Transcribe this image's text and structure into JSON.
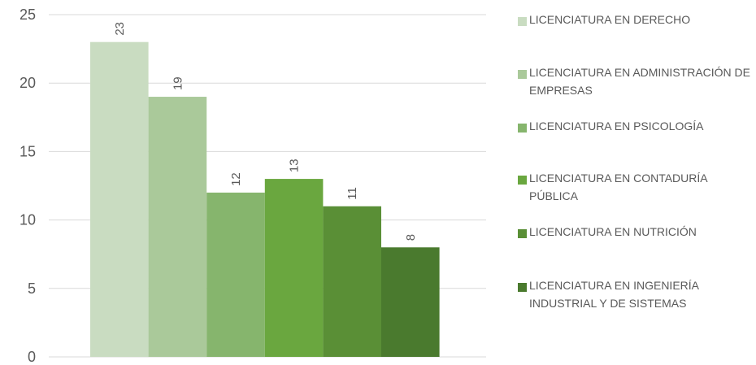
{
  "chart_data": {
    "type": "bar",
    "title": "",
    "xlabel": "",
    "ylabel": "",
    "ylim": [
      0,
      25
    ],
    "yticks": [
      "0",
      "5",
      "10",
      "15",
      "20",
      "25"
    ],
    "grid": true,
    "legend_position": "right",
    "series": [
      {
        "name": "LICENCIATURA EN DERECHO",
        "value": 23,
        "color": "#c9dcc1"
      },
      {
        "name": "LICENCIATURA EN ADMINISTRACIÓN DE EMPRESAS",
        "value": 19,
        "color": "#aac99a"
      },
      {
        "name": "LICENCIATURA EN PSICOLOGÍA",
        "value": 12,
        "color": "#86b56d"
      },
      {
        "name": "LICENCIATURA EN CONTADURÍA PÚBLICA",
        "value": 13,
        "color": "#6aa73f"
      },
      {
        "name": "LICENCIATURA EN NUTRICIÓN",
        "value": 11,
        "color": "#5a8f36"
      },
      {
        "name": "LICENCIATURA EN INGENIERÍA INDUSTRIAL Y DE SISTEMAS",
        "value": 8,
        "color": "#4a7a2e"
      }
    ]
  }
}
